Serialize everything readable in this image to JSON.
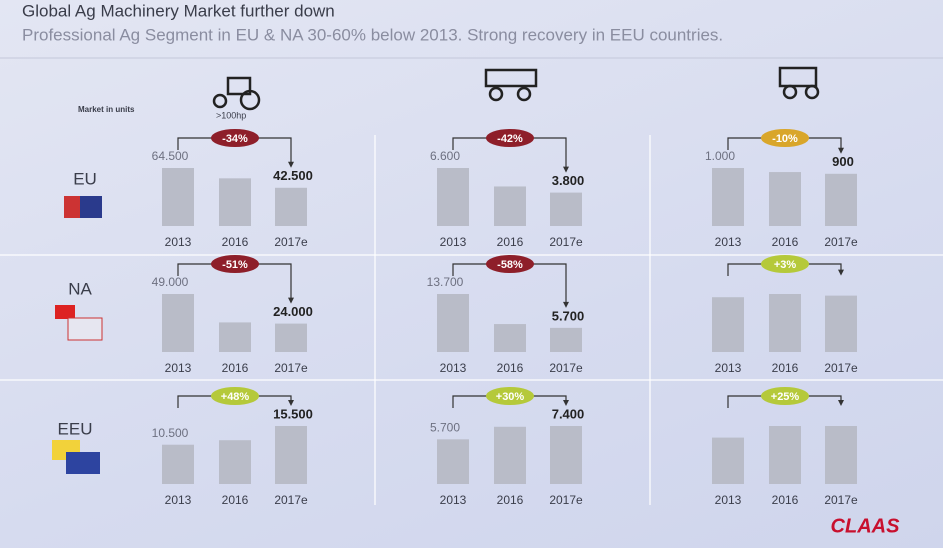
{
  "title": "Global Ag Machinery Market further down",
  "subtitle": "Professional Ag Segment in EU & NA 30-60% below 2013. Strong recovery in EEU countries.",
  "market_note": "Market in units",
  "tractor_note": ">100hp",
  "rows": [
    "EU",
    "NA",
    "EEU"
  ],
  "logo": "CLAAS",
  "chart_data": [
    {
      "type": "bar",
      "categories": [
        "2013",
        "2016",
        "2017e"
      ],
      "values": [
        64500,
        53000,
        42500
      ],
      "value_labels": [
        "64.500",
        null,
        "42.500"
      ],
      "color": "#b9bcc8",
      "change_label": "-34%",
      "change_color": "#8e1f2a"
    },
    {
      "type": "bar",
      "categories": [
        "2013",
        "2016",
        "2017e"
      ],
      "values": [
        6600,
        4500,
        3800
      ],
      "value_labels": [
        "6.600",
        null,
        "3.800"
      ],
      "color": "#b9bcc8",
      "change_label": "-42%",
      "change_color": "#8e1f2a"
    },
    {
      "type": "bar",
      "categories": [
        "2013",
        "2016",
        "2017e"
      ],
      "values": [
        1000,
        930,
        900
      ],
      "value_labels": [
        "1.000",
        null,
        "900"
      ],
      "color": "#b9bcc8",
      "change_label": "-10%",
      "change_color": "#d9a62a"
    },
    {
      "type": "bar",
      "categories": [
        "2013",
        "2016",
        "2017e"
      ],
      "values": [
        49000,
        25000,
        24000
      ],
      "value_labels": [
        "49.000",
        null,
        "24.000"
      ],
      "color": "#b9bcc8",
      "change_label": "-51%",
      "change_color": "#8e1f2a"
    },
    {
      "type": "bar",
      "categories": [
        "2013",
        "2016",
        "2017e"
      ],
      "values": [
        13700,
        6600,
        5700
      ],
      "value_labels": [
        "13.700",
        null,
        "5.700"
      ],
      "color": "#b9bcc8",
      "change_label": "-58%",
      "change_color": "#8e1f2a"
    },
    {
      "type": "bar",
      "categories": [
        "2013",
        "2016",
        "2017e"
      ],
      "values": [
        680,
        720,
        700
      ],
      "value_labels": [
        null,
        null,
        null
      ],
      "color": "#b9bcc8",
      "change_label": "+3%",
      "change_color": "#b5c93a"
    },
    {
      "type": "bar",
      "categories": [
        "2013",
        "2016",
        "2017e"
      ],
      "values": [
        10500,
        11700,
        15500
      ],
      "value_labels": [
        "10.500",
        null,
        "15.500"
      ],
      "color": "#b9bcc8",
      "change_label": "+48%",
      "change_color": "#b5c93a"
    },
    {
      "type": "bar",
      "categories": [
        "2013",
        "2016",
        "2017e"
      ],
      "values": [
        5700,
        7300,
        7400
      ],
      "value_labels": [
        "5.700",
        null,
        "7.400"
      ],
      "color": "#b9bcc8",
      "change_label": "+30%",
      "change_color": "#b5c93a"
    },
    {
      "type": "bar",
      "categories": [
        "2013",
        "2016",
        "2017e"
      ],
      "values": [
        400,
        500,
        500
      ],
      "value_labels": [
        null,
        null,
        null
      ],
      "color": "#b9bcc8",
      "change_label": "+25%",
      "change_color": "#b5c93a"
    }
  ]
}
